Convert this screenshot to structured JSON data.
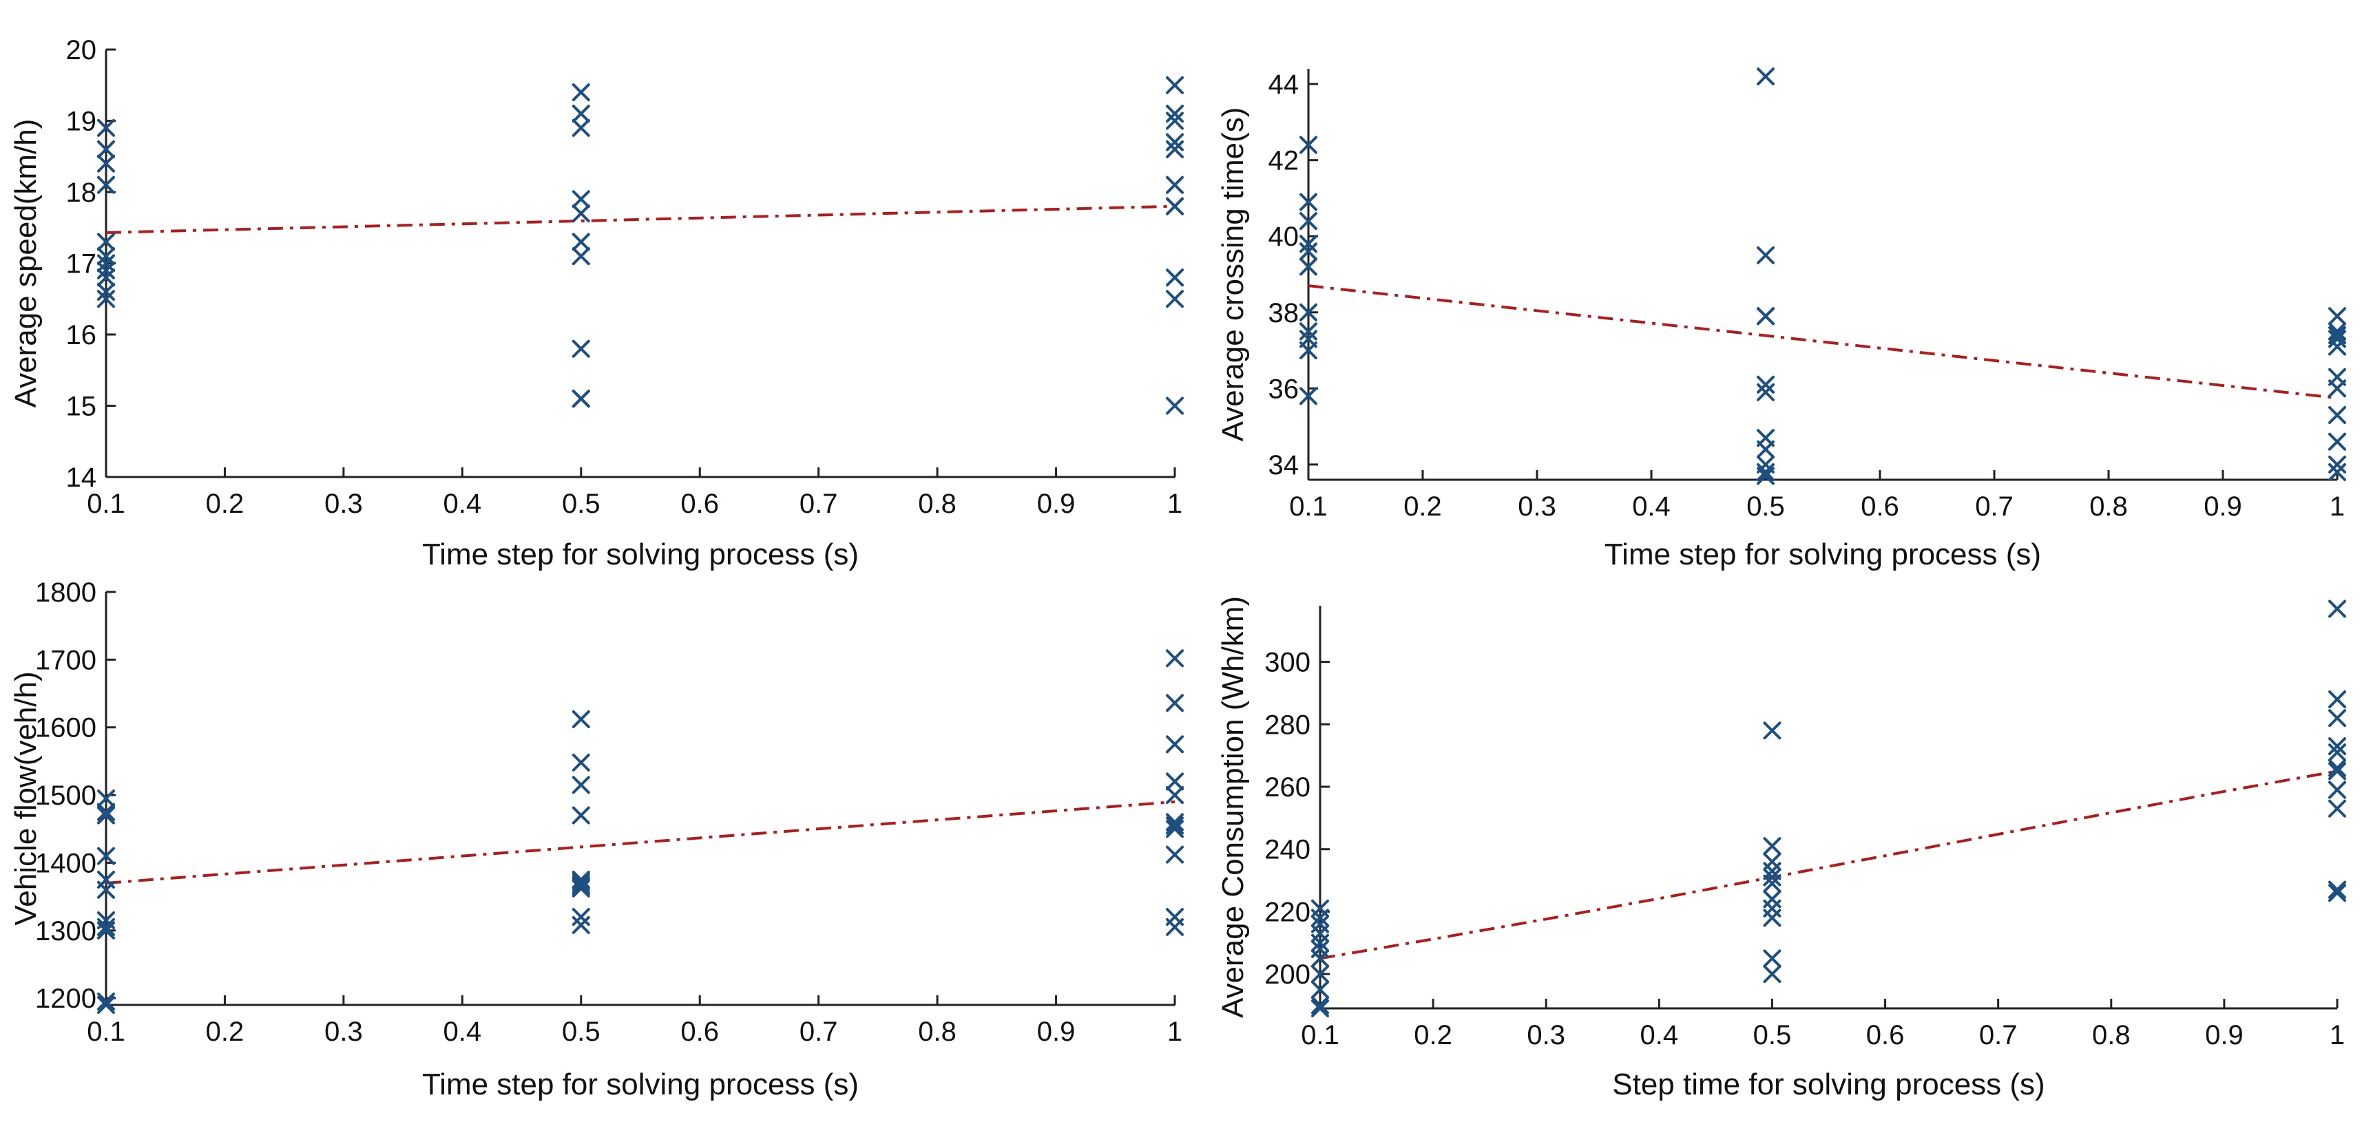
{
  "colors": {
    "marker": "#1d4f80",
    "trend": "#b01c1c",
    "axis": "#222222"
  },
  "chart_data": [
    {
      "type": "scatter",
      "xlabel": "Time step for solving process (s)",
      "ylabel": "Average speed(km/h)",
      "xlim": [
        0.1,
        1
      ],
      "ylim": [
        14,
        20
      ],
      "xticks": [
        0.1,
        0.2,
        0.3,
        0.4,
        0.5,
        0.6,
        0.7,
        0.8,
        0.9,
        1
      ],
      "xtick_labels": [
        "0.1",
        "0.2",
        "0.3",
        "0.4",
        "0.5",
        "0.6",
        "0.7",
        "0.8",
        "0.9",
        "1"
      ],
      "yticks": [
        14,
        15,
        16,
        17,
        18,
        19,
        20
      ],
      "ytick_labels": [
        "14",
        "15",
        "16",
        "17",
        "18",
        "19",
        "20"
      ],
      "x": [
        0.1,
        0.1,
        0.1,
        0.1,
        0.1,
        0.1,
        0.1,
        0.1,
        0.1,
        0.1,
        0.1,
        0.5,
        0.5,
        0.5,
        0.5,
        0.5,
        0.5,
        0.5,
        0.5,
        0.5,
        0.5,
        0.5,
        1,
        1,
        1,
        1,
        1,
        1,
        1,
        1,
        1,
        1,
        1
      ],
      "y": [
        18.9,
        18.6,
        18.4,
        18.1,
        17.3,
        17.1,
        17.0,
        16.9,
        16.8,
        16.6,
        16.5,
        19.4,
        19.1,
        18.9,
        17.9,
        17.7,
        17.3,
        17.1,
        15.8,
        15.1,
        15.1,
        15.1,
        19.5,
        19.1,
        19.0,
        18.7,
        18.6,
        18.1,
        17.8,
        16.8,
        16.5,
        15.0,
        17.8
      ],
      "trend": {
        "x": [
          0.1,
          1
        ],
        "y": [
          17.43,
          17.8
        ]
      }
    },
    {
      "type": "scatter",
      "xlabel": "Time step for solving process (s)",
      "ylabel": "Average crossing time(s)",
      "xlim": [
        0.1,
        1
      ],
      "ylim": [
        33.6,
        44.4
      ],
      "xticks": [
        0.1,
        0.2,
        0.3,
        0.4,
        0.5,
        0.6,
        0.7,
        0.8,
        0.9,
        1
      ],
      "xtick_labels": [
        "0.1",
        "0.2",
        "0.3",
        "0.4",
        "0.5",
        "0.6",
        "0.7",
        "0.8",
        "0.9",
        "1"
      ],
      "yticks": [
        34,
        36,
        38,
        40,
        42,
        44
      ],
      "ytick_labels": [
        "34",
        "36",
        "38",
        "40",
        "42",
        "44"
      ],
      "x": [
        0.1,
        0.1,
        0.1,
        0.1,
        0.1,
        0.1,
        0.1,
        0.1,
        0.1,
        0.1,
        0.1,
        0.5,
        0.5,
        0.5,
        0.5,
        0.5,
        0.5,
        0.5,
        0.5,
        0.5,
        0.5,
        0.5,
        1,
        1,
        1,
        1,
        1,
        1,
        1,
        1,
        1,
        1,
        1
      ],
      "y": [
        42.4,
        40.9,
        40.4,
        39.8,
        39.2,
        38.0,
        37.3,
        37.0,
        35.8,
        39.6,
        37.5,
        44.2,
        39.5,
        37.9,
        37.9,
        36.1,
        35.9,
        34.7,
        34.4,
        34.0,
        33.8,
        33.7,
        37.9,
        37.5,
        37.3,
        37.1,
        36.3,
        36.0,
        35.3,
        34.6,
        34.0,
        33.8,
        37.4
      ],
      "trend": {
        "x": [
          0.1,
          1
        ],
        "y": [
          38.7,
          35.75
        ]
      }
    },
    {
      "type": "scatter",
      "xlabel": "Time step for solving process (s)",
      "ylabel": "Vehicle flow(veh/h)",
      "xlim": [
        0.1,
        1
      ],
      "ylim": [
        1190,
        1800
      ],
      "xticks": [
        0.1,
        0.2,
        0.3,
        0.4,
        0.5,
        0.6,
        0.7,
        0.8,
        0.9,
        1
      ],
      "xtick_labels": [
        "0.1",
        "0.2",
        "0.3",
        "0.4",
        "0.5",
        "0.6",
        "0.7",
        "0.8",
        "0.9",
        "1"
      ],
      "yticks": [
        1200,
        1300,
        1400,
        1500,
        1600,
        1700,
        1800
      ],
      "ytick_labels": [
        "1200",
        "1300",
        "1400",
        "1500",
        "1600",
        "1700",
        "1800"
      ],
      "x": [
        0.1,
        0.1,
        0.1,
        0.1,
        0.1,
        0.1,
        0.1,
        0.1,
        0.1,
        0.1,
        0.1,
        0.5,
        0.5,
        0.5,
        0.5,
        0.5,
        0.5,
        0.5,
        0.5,
        0.5,
        0.5,
        0.5,
        1,
        1,
        1,
        1,
        1,
        1,
        1,
        1,
        1,
        1,
        1
      ],
      "y": [
        1495,
        1475,
        1470,
        1410,
        1375,
        1360,
        1315,
        1305,
        1300,
        1190,
        1195,
        1612,
        1548,
        1515,
        1470,
        1375,
        1368,
        1362,
        1320,
        1308,
        1365,
        1372,
        1702,
        1636,
        1575,
        1520,
        1500,
        1460,
        1450,
        1412,
        1320,
        1305,
        1455
      ],
      "trend": {
        "x": [
          0.1,
          1
        ],
        "y": [
          1370,
          1490
        ]
      }
    },
    {
      "type": "scatter",
      "xlabel": "Step time for solving process (s)",
      "ylabel": "Average Consumption (Wh/km)",
      "xlim": [
        0.1,
        1
      ],
      "ylim": [
        189,
        318
      ],
      "xticks": [
        0.1,
        0.2,
        0.3,
        0.4,
        0.5,
        0.6,
        0.7,
        0.8,
        0.9,
        1
      ],
      "xtick_labels": [
        "0.1",
        "0.2",
        "0.3",
        "0.4",
        "0.5",
        "0.6",
        "0.7",
        "0.8",
        "0.9",
        "1"
      ],
      "yticks": [
        200,
        220,
        240,
        260,
        280,
        300
      ],
      "ytick_labels": [
        "200",
        "220",
        "240",
        "260",
        "280",
        "300"
      ],
      "x": [
        0.1,
        0.1,
        0.1,
        0.1,
        0.1,
        0.1,
        0.1,
        0.1,
        0.1,
        0.1,
        0.1,
        0.5,
        0.5,
        0.5,
        0.5,
        0.5,
        0.5,
        0.5,
        0.5,
        0.5,
        0.5,
        0.5,
        1,
        1,
        1,
        1,
        1,
        1,
        1,
        1,
        1,
        1,
        1
      ],
      "y": [
        221,
        216,
        213,
        210,
        208,
        205,
        200,
        195,
        190,
        189,
        218,
        278,
        241,
        236,
        233,
        229,
        224,
        221,
        218,
        205,
        200,
        231,
        317,
        288,
        282,
        273,
        271,
        265,
        259,
        253,
        227,
        226,
        266
      ],
      "trend": {
        "x": [
          0.1,
          0.2,
          0.3,
          0.4,
          0.5,
          0.6,
          0.7,
          0.8,
          0.9,
          1
        ],
        "y": [
          205,
          211.2,
          217.6,
          224.2,
          231,
          237.9,
          244.8,
          251.7,
          258.5,
          265
        ]
      }
    }
  ]
}
